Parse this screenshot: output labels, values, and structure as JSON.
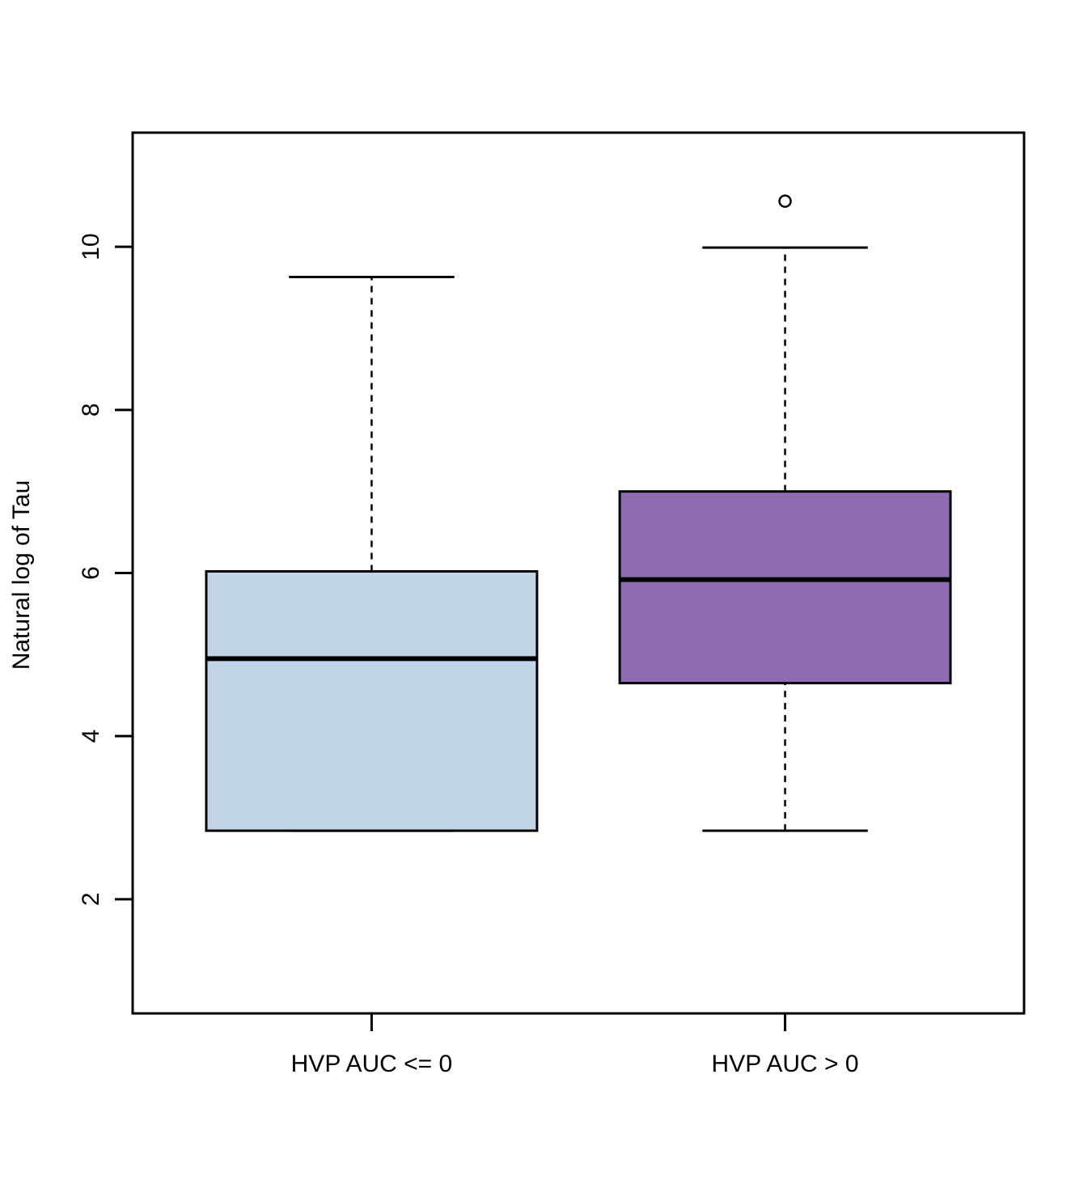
{
  "chart_data": {
    "type": "box",
    "ylabel": "Natural log of Tau",
    "ylim": [
      0.6,
      11.4
    ],
    "yticks": [
      2,
      4,
      6,
      8,
      10
    ],
    "yticks_labels": [
      "2",
      "4",
      "6",
      "8",
      "10"
    ],
    "categories": [
      "HVP AUC <= 0",
      "HVP AUC > 0"
    ],
    "boxes": [
      {
        "label": "HVP AUC <= 0",
        "whisker_low": 2.84,
        "q1": 2.84,
        "median": 4.95,
        "q3": 6.02,
        "whisker_high": 9.63,
        "outliers": [],
        "color": "#c1d4e8"
      },
      {
        "label": "HVP AUC > 0",
        "whisker_low": 2.84,
        "q1": 4.65,
        "median": 5.92,
        "q3": 7.0,
        "whisker_high": 9.99,
        "outliers": [
          10.56
        ],
        "color": "#8e6cb1"
      }
    ]
  }
}
